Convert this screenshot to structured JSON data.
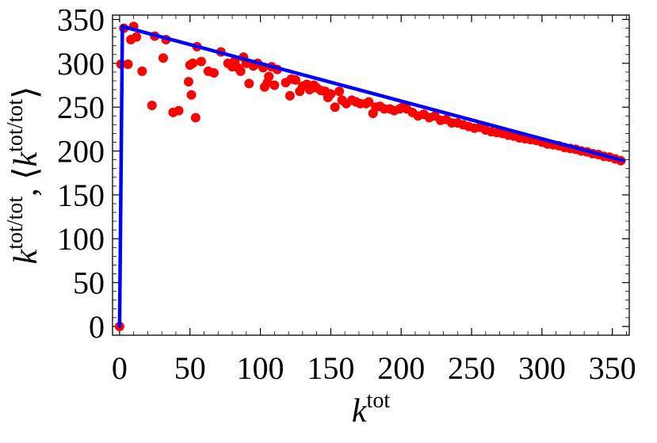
{
  "chart_data": {
    "type": "scatter",
    "xlabel": {
      "base": "k",
      "sup": "tot"
    },
    "ylabel": {
      "base1": "k",
      "sup1": "tot/tot",
      "sep": ", ",
      "open": "⟨",
      "base2": "k",
      "sup2": "tot/tot",
      "close": "⟩"
    },
    "xlim": [
      -5,
      362
    ],
    "ylim": [
      -10,
      355
    ],
    "xticks": [
      0,
      50,
      100,
      150,
      200,
      250,
      300,
      350
    ],
    "yticks": [
      0,
      50,
      100,
      150,
      200,
      250,
      300,
      350
    ],
    "grid": false,
    "colors": {
      "scatter": "#ff0000",
      "line": "#0000ff"
    },
    "series": [
      {
        "kind": "scatter",
        "points": [
          [
            0,
            0
          ],
          [
            1,
            299
          ],
          [
            3,
            340
          ],
          [
            6,
            299
          ],
          [
            8,
            327
          ],
          [
            10,
            342
          ],
          [
            12,
            330
          ],
          [
            16,
            291
          ],
          [
            23,
            252
          ],
          [
            25,
            331
          ],
          [
            31,
            306
          ],
          [
            33,
            327
          ],
          [
            38,
            244
          ],
          [
            42,
            246
          ],
          [
            49,
            279
          ],
          [
            50,
            298
          ],
          [
            51,
            264
          ],
          [
            52,
            300
          ],
          [
            54,
            238
          ],
          [
            55,
            319
          ],
          [
            58,
            302
          ],
          [
            63,
            291
          ],
          [
            67,
            289
          ],
          [
            72,
            313
          ],
          [
            77,
            300
          ],
          [
            80,
            296
          ],
          [
            82,
            303
          ],
          [
            84,
            295
          ],
          [
            86,
            291
          ],
          [
            88,
            307
          ],
          [
            90,
            300
          ],
          [
            92,
            277
          ],
          [
            95,
            297
          ],
          [
            98,
            300
          ],
          [
            102,
            295
          ],
          [
            103,
            273
          ],
          [
            105,
            278
          ],
          [
            106,
            285
          ],
          [
            108,
            296
          ],
          [
            110,
            275
          ],
          [
            112,
            293
          ],
          [
            118,
            278
          ],
          [
            121,
            263
          ],
          [
            122,
            282
          ],
          [
            125,
            281
          ],
          [
            128,
            268
          ],
          [
            130,
            274
          ],
          [
            133,
            276
          ],
          [
            135,
            270
          ],
          [
            138,
            275
          ],
          [
            140,
            272
          ],
          [
            143,
            269
          ],
          [
            146,
            268
          ],
          [
            148,
            261
          ],
          [
            150,
            265
          ],
          [
            153,
            250
          ],
          [
            156,
            268
          ],
          [
            158,
            258
          ],
          [
            161,
            254
          ],
          [
            165,
            258
          ],
          [
            168,
            256
          ],
          [
            171,
            254
          ],
          [
            175,
            254
          ],
          [
            177,
            256
          ],
          [
            180,
            243
          ],
          [
            182,
            250
          ],
          [
            185,
            251
          ],
          [
            188,
            248
          ],
          [
            192,
            248
          ],
          [
            195,
            246
          ],
          [
            199,
            248
          ],
          [
            201,
            250
          ],
          [
            204,
            248
          ],
          [
            208,
            244
          ],
          [
            212,
            240
          ],
          [
            216,
            242
          ],
          [
            220,
            238
          ],
          [
            224,
            240
          ],
          [
            228,
            235
          ],
          [
            232,
            236
          ],
          [
            236,
            232
          ],
          [
            240,
            232
          ],
          [
            244,
            230
          ],
          [
            248,
            228
          ],
          [
            252,
            226
          ],
          [
            256,
            227
          ],
          [
            260,
            224
          ],
          [
            264,
            222
          ],
          [
            268,
            221
          ],
          [
            272,
            220
          ],
          [
            276,
            218
          ],
          [
            280,
            217
          ],
          [
            284,
            215
          ],
          [
            288,
            214
          ],
          [
            292,
            213
          ],
          [
            296,
            212
          ],
          [
            300,
            210
          ],
          [
            304,
            208
          ],
          [
            308,
            207
          ],
          [
            312,
            206
          ],
          [
            316,
            204
          ],
          [
            320,
            203
          ],
          [
            324,
            202
          ],
          [
            328,
            200
          ],
          [
            332,
            199
          ],
          [
            336,
            197
          ],
          [
            340,
            196
          ],
          [
            344,
            194
          ],
          [
            348,
            193
          ],
          [
            352,
            191
          ],
          [
            356,
            189
          ]
        ]
      },
      {
        "kind": "line",
        "points": [
          [
            0,
            0
          ],
          [
            2,
            342
          ],
          [
            358,
            189
          ]
        ]
      }
    ]
  }
}
